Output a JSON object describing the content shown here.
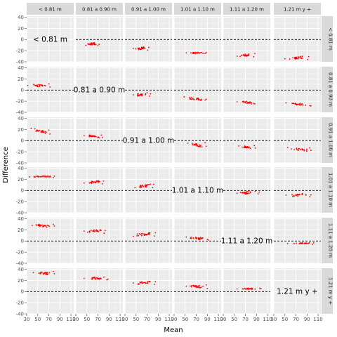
{
  "chart_data": {
    "type": "scatter",
    "layout": "facet-grid",
    "xlabel": "Mean",
    "ylabel": "Difference",
    "xlim": [
      30,
      115
    ],
    "ylim": [
      -40,
      42
    ],
    "x_ticks": [
      30,
      50,
      70,
      90,
      110
    ],
    "x_tick_labels": [
      "30",
      "50",
      "70",
      "90",
      "110"
    ],
    "y_ticks": [
      -40,
      -20,
      0,
      20,
      40
    ],
    "y_tick_labels": [
      "-40",
      "-20",
      "0",
      "20",
      "40"
    ],
    "reference_line": {
      "y": 0,
      "style": "dashed"
    },
    "point_color": "#ff0000",
    "groups": [
      "< 0.81 m",
      "0.81 a 0.90 m",
      "0.91 a 1.00 m",
      "1.01 a 1.10 m",
      "1.11 a 1.20 m",
      "1.21 m y +"
    ],
    "column_strips": [
      "< 0.81 m",
      "0.81 a 0.90 m",
      "0.91 a 1.00 m",
      "1.01 a 1.10 m",
      "1.11 a 1.20 m",
      "1.21 m y +"
    ],
    "row_strips": [
      "< 0.81 m",
      "0.81 a 0.90 m",
      "0.91 a 1.00 m",
      "1.01 a 1.10 m",
      "1.11 a 1.20 m",
      "1.21 m y +"
    ],
    "cell_clusters": [
      [
        null,
        {
          "x0": 48,
          "x1": 72,
          "c": -8,
          "w": 2,
          "s": 0.5,
          "dmin": -11,
          "n": 26
        },
        {
          "x0": 45,
          "x1": 73,
          "c": -16,
          "w": 2,
          "s": 0.5,
          "dmin": -19,
          "n": 26
        },
        {
          "x0": 52,
          "x1": 88,
          "c": -24,
          "w": 1,
          "s": 0,
          "dmin": -25,
          "n": 28
        },
        {
          "x0": 55,
          "x1": 87,
          "c": -28,
          "w": 2,
          "s": 1,
          "dmin": -31,
          "n": 24
        },
        {
          "x0": 50,
          "x1": 93,
          "c": -33,
          "w": 2,
          "s": 1,
          "dmin": -36,
          "n": 24
        }
      ],
      [
        {
          "x0": 32,
          "x1": 72,
          "c": 8,
          "w": 2,
          "s": -1,
          "dmin": 11,
          "n": 26
        },
        null,
        {
          "x0": 45,
          "x1": 76,
          "c": -8,
          "w": 2,
          "s": 1,
          "dmin": -11,
          "n": 24
        },
        {
          "x0": 48,
          "x1": 88,
          "c": -16,
          "w": 2,
          "s": -1,
          "dmin": -18,
          "n": 26
        },
        {
          "x0": 55,
          "x1": 87,
          "c": -22,
          "w": 2,
          "s": -1,
          "dmin": -24,
          "n": 24
        },
        {
          "x0": 52,
          "x1": 97,
          "c": -25,
          "w": 2,
          "s": -1,
          "dmin": -28,
          "n": 24
        }
      ],
      [
        {
          "x0": 38,
          "x1": 72,
          "c": 17,
          "w": 2,
          "s": -2,
          "dmin": 19,
          "n": 26
        },
        {
          "x0": 45,
          "x1": 78,
          "c": 8,
          "w": 2,
          "s": -1,
          "dmin": 10,
          "n": 24
        },
        null,
        {
          "x0": 55,
          "x1": 88,
          "c": -8,
          "w": 2,
          "s": -2,
          "dmin": -4,
          "n": 26
        },
        {
          "x0": 58,
          "x1": 88,
          "c": -12,
          "w": 2,
          "s": -1,
          "dmin": -9,
          "n": 24
        },
        {
          "x0": 55,
          "x1": 97,
          "c": -16,
          "w": 2,
          "s": -1,
          "dmin": -13,
          "n": 24
        }
      ],
      [
        {
          "x0": 35,
          "x1": 80,
          "c": 25,
          "w": 1,
          "s": 0,
          "dmin": 23,
          "n": 28
        },
        {
          "x0": 45,
          "x1": 80,
          "c": 15,
          "w": 2,
          "s": 1,
          "dmin": 12,
          "n": 24
        },
        {
          "x0": 48,
          "x1": 82,
          "c": 8,
          "w": 2,
          "s": 1,
          "dmin": 5,
          "n": 26
        },
        null,
        {
          "x0": 55,
          "x1": 95,
          "c": -4,
          "w": 2,
          "s": 1,
          "dmin": -6,
          "n": 26
        },
        {
          "x0": 52,
          "x1": 97,
          "c": -8,
          "w": 2,
          "s": 1,
          "dmin": -11,
          "n": 24
        }
      ],
      [
        {
          "x0": 40,
          "x1": 80,
          "c": 27,
          "w": 2,
          "s": -1,
          "dmin": 30,
          "n": 26
        },
        {
          "x0": 45,
          "x1": 83,
          "c": 18,
          "w": 2,
          "s": 1,
          "dmin": 14,
          "n": 24
        },
        {
          "x0": 45,
          "x1": 85,
          "c": 12,
          "w": 2,
          "s": 1,
          "dmin": 9,
          "n": 26
        },
        {
          "x0": 52,
          "x1": 92,
          "c": 5,
          "w": 2,
          "s": -1,
          "dmin": 3,
          "n": 26
        },
        null,
        {
          "x0": 55,
          "x1": 102,
          "c": -4,
          "w": 1,
          "s": 0,
          "dmin": -6,
          "n": 26
        }
      ],
      [
        {
          "x0": 42,
          "x1": 80,
          "c": 33,
          "w": 2,
          "s": -1,
          "dmin": 36,
          "n": 26
        },
        {
          "x0": 45,
          "x1": 88,
          "c": 24,
          "w": 2,
          "s": 0,
          "dmin": 21,
          "n": 24
        },
        {
          "x0": 45,
          "x1": 85,
          "c": 16,
          "w": 2,
          "s": 1,
          "dmin": 13,
          "n": 26
        },
        {
          "x0": 52,
          "x1": 90,
          "c": 9,
          "w": 2,
          "s": -1,
          "dmin": 12,
          "n": 26
        },
        {
          "x0": 55,
          "x1": 98,
          "c": 5,
          "w": 1,
          "s": 0,
          "dmin": 6,
          "n": 26
        },
        null
      ]
    ]
  },
  "colors": {
    "panel_background": "#ebebeb",
    "strip_background": "#d9d9d9",
    "grid_major": "#ffffff",
    "grid_minor": "#f5f5f5",
    "points": "#ff0000"
  }
}
